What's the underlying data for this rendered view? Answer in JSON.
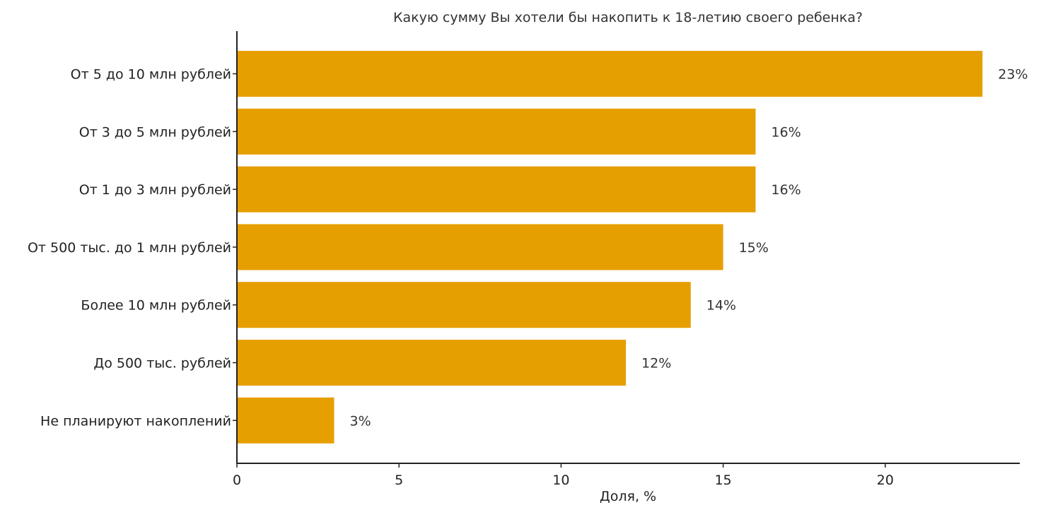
{
  "chart_data": {
    "type": "bar",
    "orientation": "horizontal",
    "title": "Какую сумму Вы хотели бы накопить к 18-летию своего ребенка?",
    "xlabel": "Доля, %",
    "ylabel": "",
    "categories": [
      "От 5 до 10 млн рублей",
      "От 3 до 5 млн рублей",
      "От 1 до 3 млн рублей",
      "От 500 тыс. до 1 млн рублей",
      "Более 10 млн рублей",
      "До 500 тыс. рублей",
      "Не планируют накоплений"
    ],
    "values": [
      23,
      16,
      16,
      15,
      14,
      12,
      3
    ],
    "data_labels": [
      "23%",
      "16%",
      "16%",
      "15%",
      "14%",
      "12%",
      "3%"
    ],
    "xlim": [
      0,
      24.15
    ],
    "xticks": [
      0,
      5,
      10,
      15,
      20
    ],
    "xtick_labels": [
      "0",
      "5",
      "10",
      "15",
      "20"
    ],
    "grid": false,
    "colors": {
      "bar": "#E69F00",
      "text": "#333333",
      "axis": "#222222"
    }
  }
}
